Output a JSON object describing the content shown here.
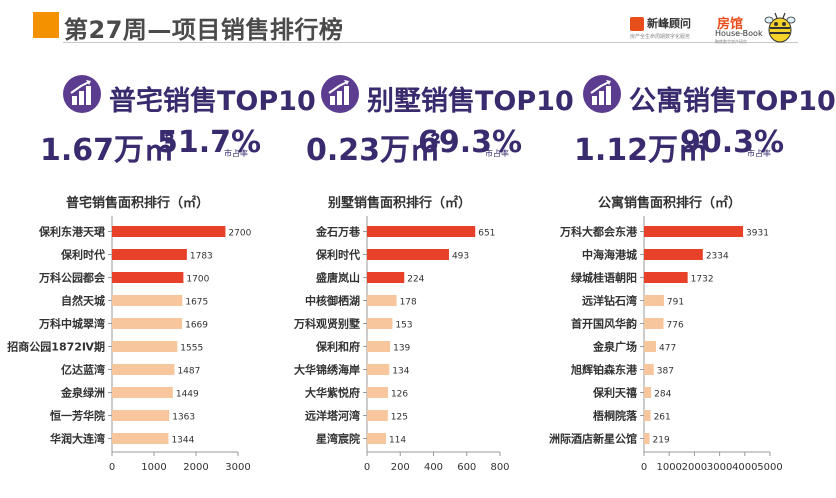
{
  "page": {
    "title": "第27周—项目销售排行榜",
    "brand_xinfeng": "新峰顾问",
    "brand_xinfeng_tagline": "房产全生命周期数字化服务",
    "brand_fangguan": "房馆",
    "brand_fangguan_en": "House-Book",
    "brand_fangguan_sub": "聚焦数字房产研究",
    "accent_color": "#f39100",
    "title_color": "#3a2a6e"
  },
  "summaries": [
    {
      "title": "普宅销售TOP10",
      "area": "1.67万㎡",
      "share": "51.7%",
      "share_label": "市占率"
    },
    {
      "title": "别墅销售TOP10",
      "area": "0.23万㎡",
      "share": "69.3%",
      "share_label": "市占率"
    },
    {
      "title": "公寓销售TOP10",
      "area": "1.12万㎡",
      "share": "90.3%",
      "share_label": "市占率"
    }
  ],
  "chart_data": [
    {
      "type": "bar",
      "orientation": "horizontal",
      "title": "普宅销售面积排行（㎡）",
      "categories": [
        "保利东港天珺",
        "保利时代",
        "万科公园都会",
        "自然天城",
        "万科中城翠湾",
        "招商公园1872Ⅳ期",
        "亿达蓝湾",
        "金泉绿洲",
        "恒一芳华院",
        "华润大连湾"
      ],
      "values": [
        2700,
        1783,
        1700,
        1675,
        1669,
        1555,
        1487,
        1449,
        1363,
        1344
      ],
      "xlim": [
        0,
        3000
      ],
      "xticks": [
        0,
        1000,
        2000,
        3000
      ],
      "highlight_count": 3,
      "colors": {
        "highlight": "#e8412a",
        "normal": "#f8c69c"
      }
    },
    {
      "type": "bar",
      "orientation": "horizontal",
      "title": "别墅销售面积排行（㎡）",
      "categories": [
        "金石万巷",
        "保利时代",
        "盛唐岚山",
        "中核御栖湖",
        "万科观贤别墅",
        "保利和府",
        "大华锦绣海岸",
        "大华紫悦府",
        "远洋塔河湾",
        "星湾宸院"
      ],
      "values": [
        651,
        493,
        224,
        178,
        153,
        139,
        134,
        126,
        125,
        114
      ],
      "xlim": [
        0,
        800
      ],
      "xticks": [
        0,
        200,
        400,
        600,
        800
      ],
      "highlight_count": 3,
      "colors": {
        "highlight": "#e8412a",
        "normal": "#f8c69c"
      }
    },
    {
      "type": "bar",
      "orientation": "horizontal",
      "title": "公寓销售面积排行（㎡）",
      "categories": [
        "万科大都会东港",
        "中海海港城",
        "绿城桂语朝阳",
        "远洋钻石湾",
        "首开国风华韵",
        "金泉广场",
        "旭辉铂森东港",
        "保利天禧",
        "梧桐院落",
        "洲际酒店新星公馆"
      ],
      "values": [
        3931,
        2334,
        1732,
        791,
        776,
        477,
        387,
        284,
        261,
        219
      ],
      "xlim": [
        0,
        5000
      ],
      "xticks": [
        0,
        1000,
        2000,
        3000,
        4000,
        5000
      ],
      "highlight_count": 3,
      "colors": {
        "highlight": "#e8412a",
        "normal": "#f8c69c"
      }
    }
  ]
}
